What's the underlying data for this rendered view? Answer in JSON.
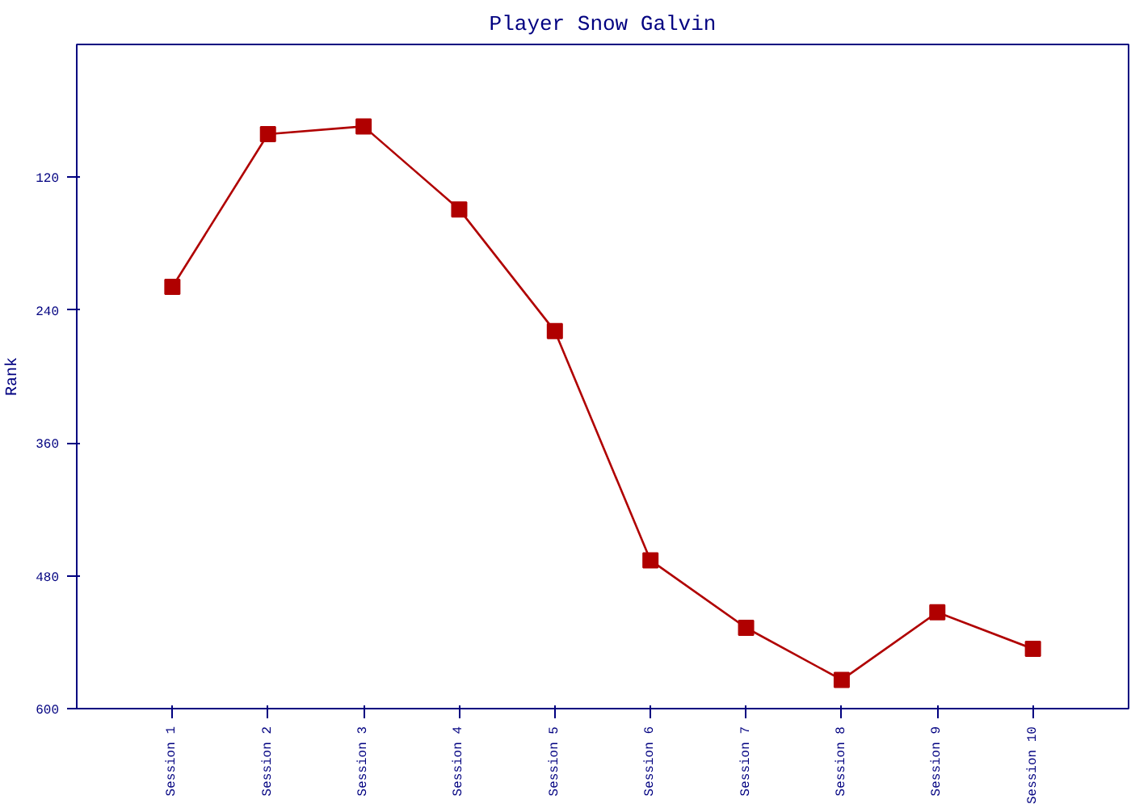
{
  "chart_data": {
    "type": "line",
    "title": "Player Snow Galvin",
    "ylabel": "Rank",
    "categories": [
      "Session 1",
      "Session 2",
      "Session 3",
      "Session 4",
      "Session 5",
      "Session 6",
      "Session 7",
      "Session 8",
      "Session 9",
      "Session 10"
    ],
    "series": [
      {
        "color": "#b00000",
        "values": [
          219,
          81,
          74,
          149,
          259,
          466,
          527,
          574,
          513,
          546
        ]
      }
    ],
    "ylim": [
      600,
      0
    ],
    "yticks": [
      120,
      240,
      360,
      480,
      600
    ],
    "marker": "square",
    "line_style": "solid",
    "grid": false
  }
}
